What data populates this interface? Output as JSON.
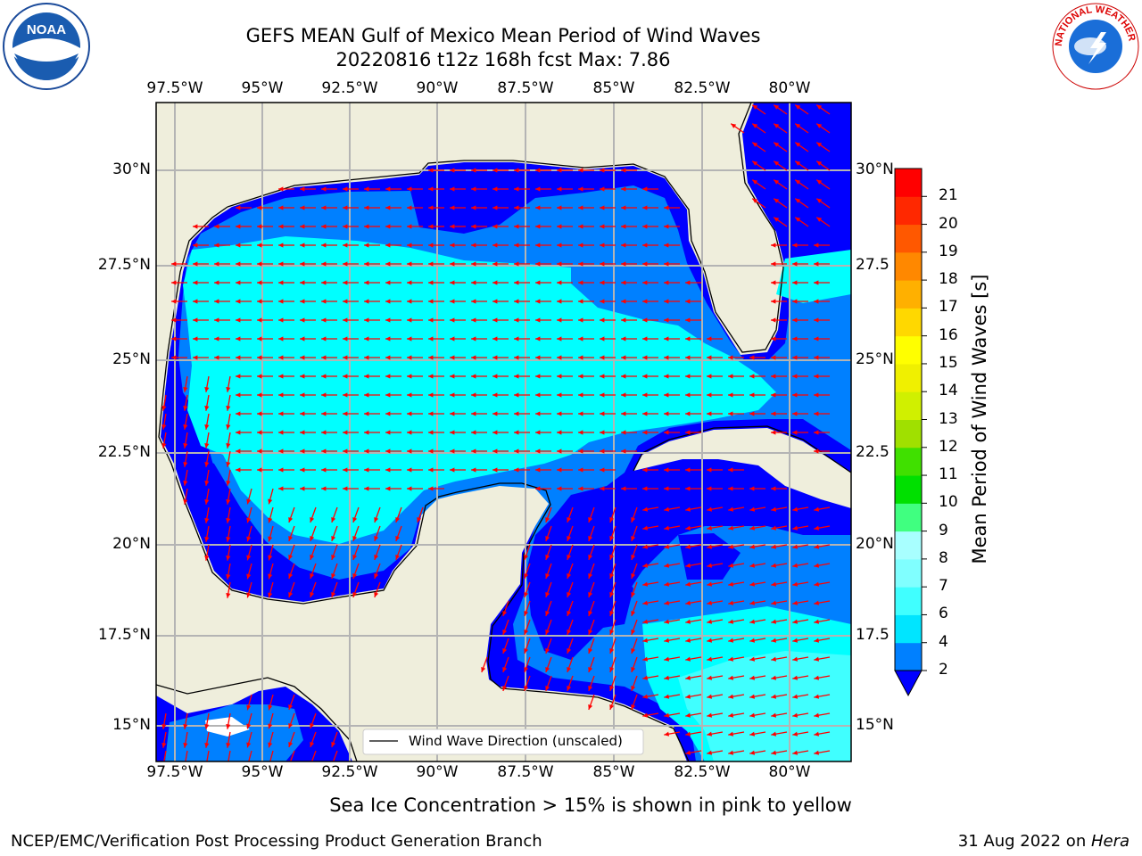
{
  "header": {
    "title_line1": "GEFS MEAN Gulf of Mexico Mean Period of Wind Waves",
    "title_line2": "20220816 t12z 168h fcst   Max: 7.86"
  },
  "logos": {
    "left": "NOAA",
    "right": "NATIONAL WEATHER SERVICE"
  },
  "map": {
    "lon_labels": [
      "97.5°W",
      "95°W",
      "92.5°W",
      "90°W",
      "87.5°W",
      "85°W",
      "82.5°W",
      "80°W"
    ],
    "lat_labels": [
      "30°N",
      "27.5°N",
      "25°N",
      "22.5°N",
      "20°N",
      "17.5°N",
      "15°N"
    ],
    "lat_labels_right": [
      "30°N",
      "27.5",
      "25°N",
      "22.5",
      "20°N",
      "17.5",
      "15°N"
    ],
    "legend_label": "Wind Wave Direction (unscaled)"
  },
  "colorbar": {
    "label": "Mean Period of Wind Waves [s]",
    "ticks": [
      "2",
      "4",
      "6",
      "7",
      "8",
      "9",
      "10",
      "11",
      "12",
      "13",
      "14",
      "15",
      "16",
      "17",
      "18",
      "19",
      "20",
      "21"
    ],
    "colors": [
      "#0080ff",
      "#00e5ff",
      "#40ffff",
      "#80ffff",
      "#a8ffff",
      "#40ff80",
      "#00e000",
      "#40e000",
      "#a0e000",
      "#d0f000",
      "#f0f000",
      "#ffff00",
      "#ffd800",
      "#ffb000",
      "#ff8800",
      "#ff5800",
      "#ff2800",
      "#ff0000"
    ],
    "extend_color": "#0000ff"
  },
  "note": "Sea Ice Concentration > 15% is shown in pink to yellow",
  "footer": {
    "left": "NCEP/EMC/Verification Post Processing Product Generation Branch",
    "right_date": "31 Aug 2022 on ",
    "right_machine": "Hera"
  }
}
